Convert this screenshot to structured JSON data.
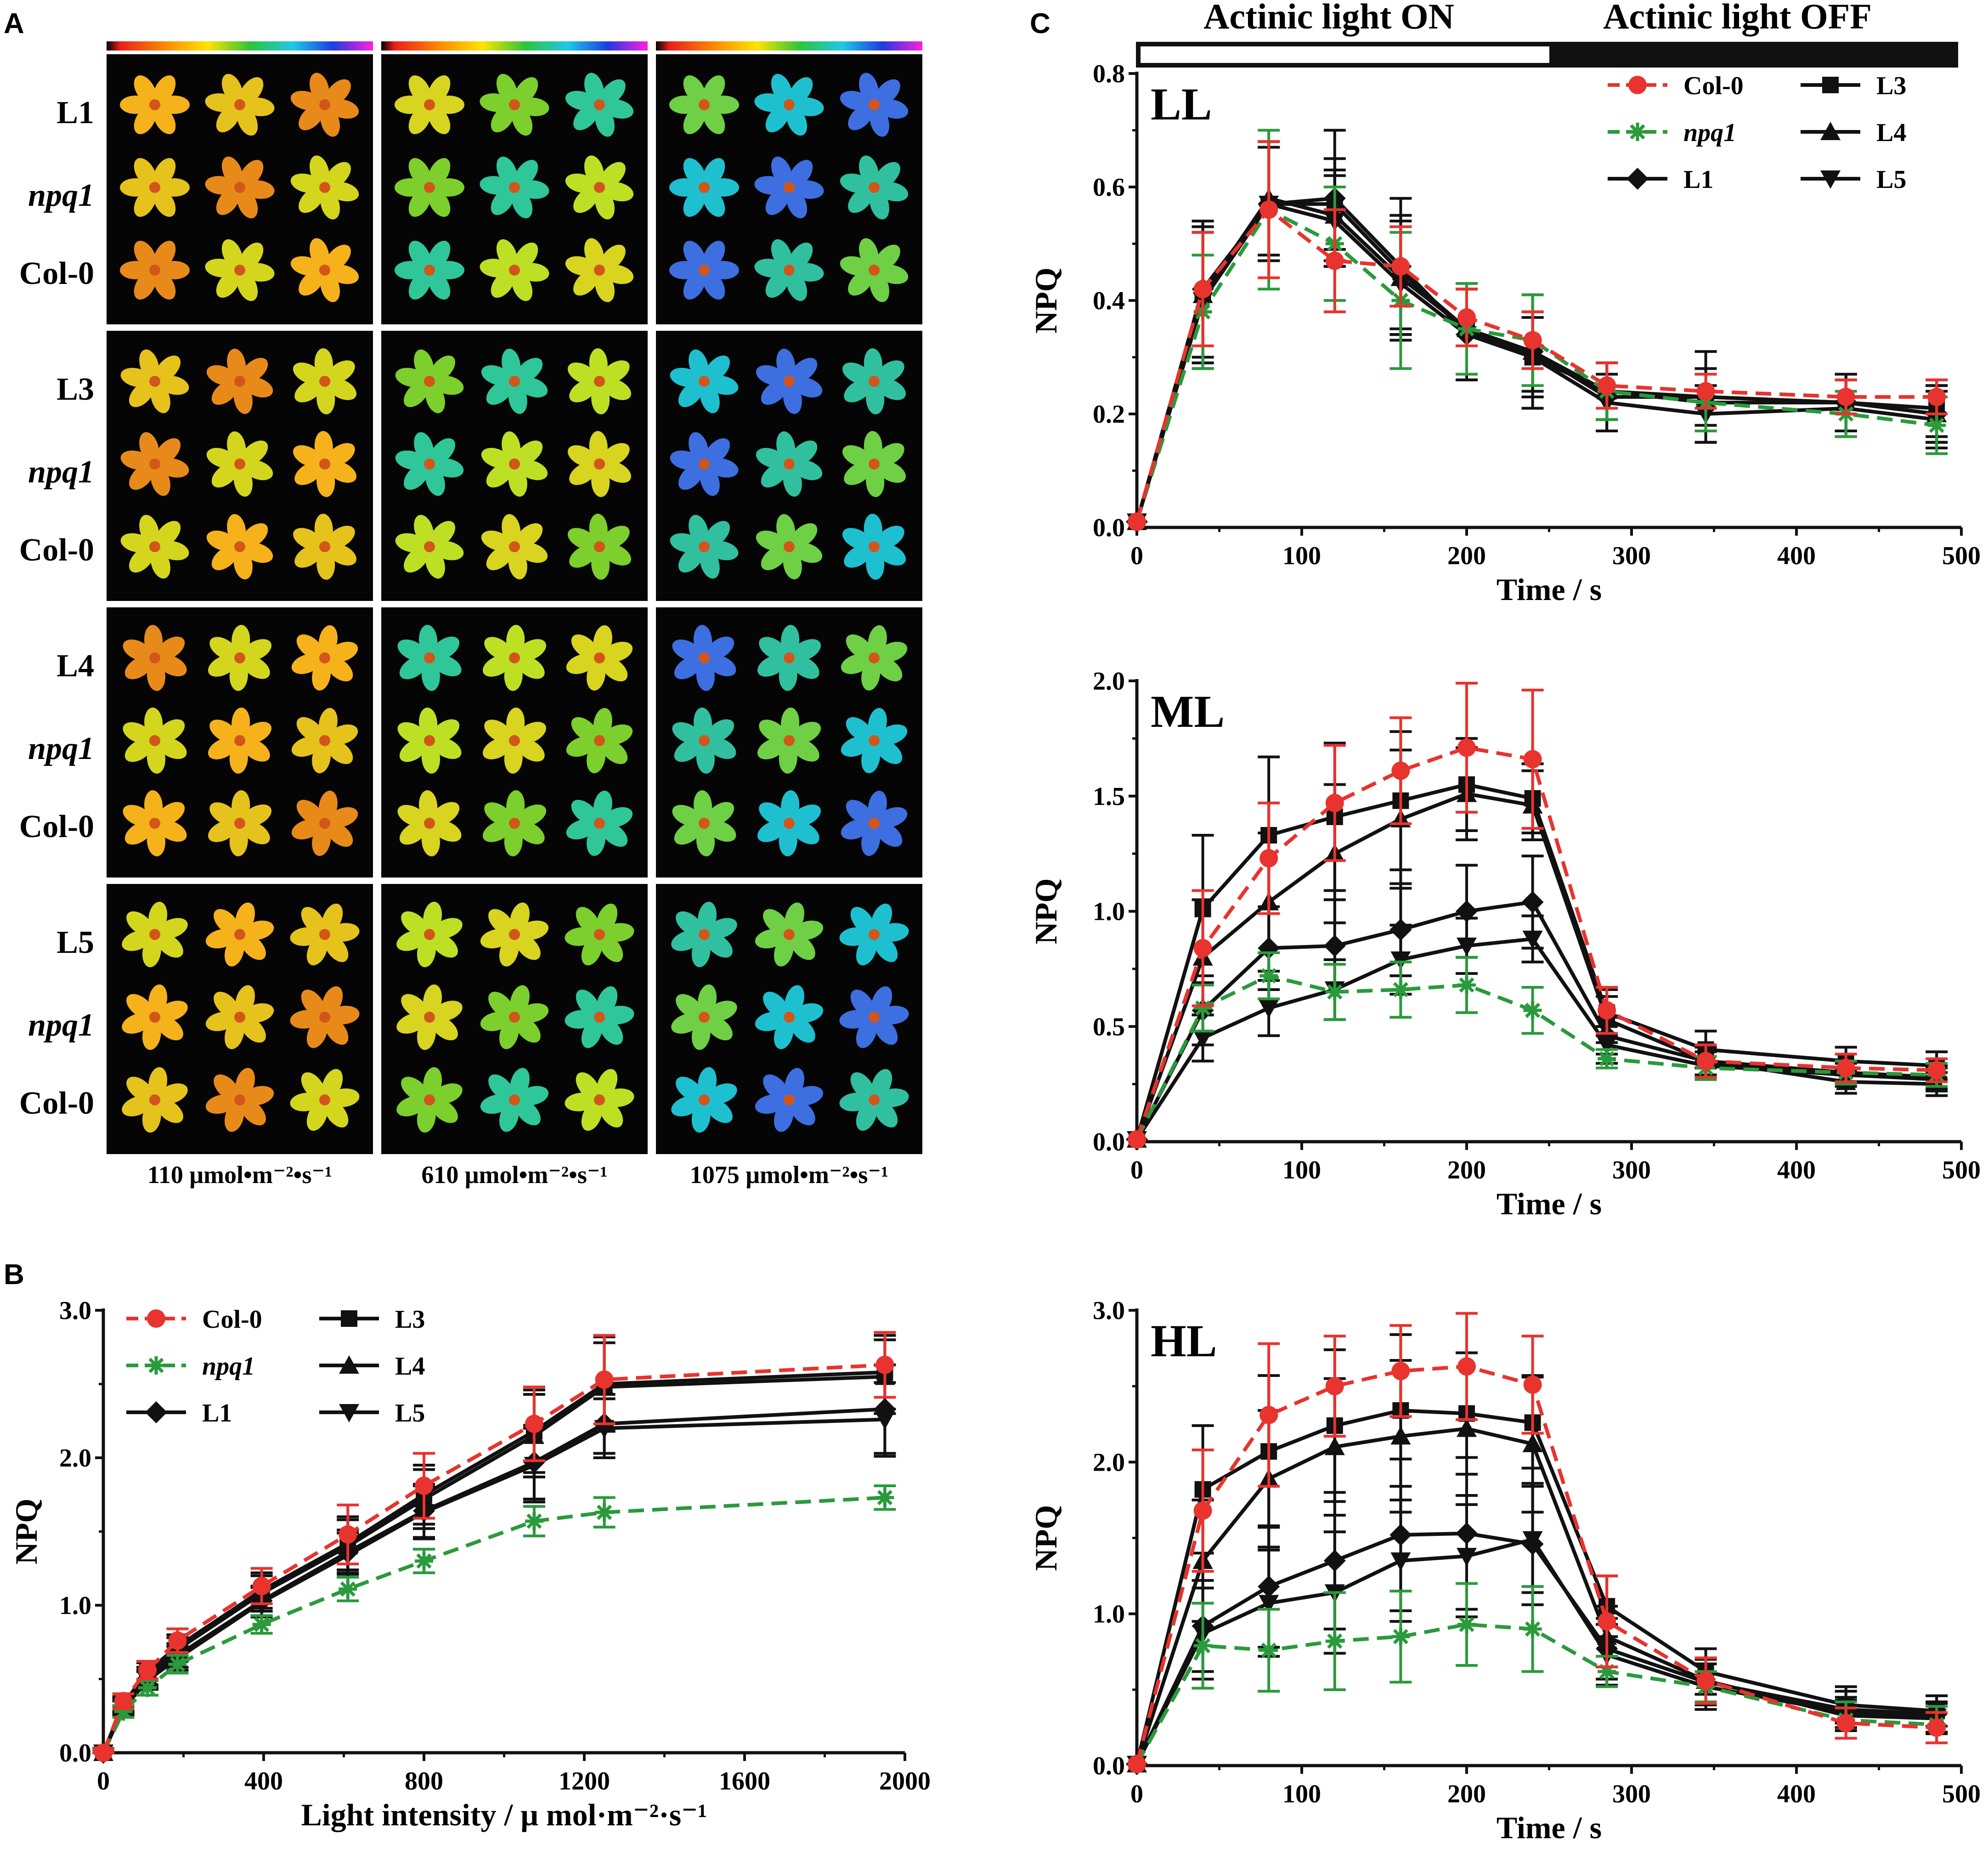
{
  "panels": {
    "a": "A",
    "b": "B",
    "c": "C"
  },
  "colors": {
    "col0": "#e8332e",
    "npq1": "#2a9a3c",
    "black": "#111111"
  },
  "panel_a": {
    "intensities": [
      "110 μmol•m⁻²•s⁻¹",
      "610 μmol•m⁻²•s⁻¹",
      "1075 μmol•m⁻²•s⁻¹"
    ],
    "groups": [
      {
        "line": "L1",
        "npq": "npq1",
        "col": "Col-0"
      },
      {
        "line": "L3",
        "npq": "npq1",
        "col": "Col-0"
      },
      {
        "line": "L4",
        "npq": "npq1",
        "col": "Col-0"
      },
      {
        "line": "L5",
        "npq": "npq1",
        "col": "Col-0"
      }
    ]
  },
  "legend": [
    {
      "label": "Col-0",
      "italic": false,
      "color": "#e8332e",
      "marker": "circle",
      "dash": true
    },
    {
      "label": "npq1",
      "italic": true,
      "color": "#2a9a3c",
      "marker": "star",
      "dash": true
    },
    {
      "label": "L1",
      "italic": false,
      "color": "#111111",
      "marker": "diamond",
      "dash": false
    },
    {
      "label": "L3",
      "italic": false,
      "color": "#111111",
      "marker": "square",
      "dash": false
    },
    {
      "label": "L4",
      "italic": false,
      "color": "#111111",
      "marker": "triangle-up",
      "dash": false
    },
    {
      "label": "L5",
      "italic": false,
      "color": "#111111",
      "marker": "triangle-down",
      "dash": false
    }
  ],
  "actinic": {
    "on": "Actinic light  ON",
    "off": "Actinic light  OFF",
    "on_end_s": 240
  },
  "chart_data": [
    {
      "id": "B",
      "type": "line",
      "title": "",
      "xlabel": "Light intensity / μ mol·m⁻²·s⁻¹",
      "ylabel": "NPQ",
      "xlim": [
        0,
        2000
      ],
      "ylim": [
        0,
        3.0
      ],
      "xticks": [
        0,
        400,
        800,
        1200,
        1600,
        2000
      ],
      "yticks": [
        0.0,
        1.0,
        2.0,
        3.0
      ],
      "ytick_labels": [
        "0.0",
        "1.0",
        "2.0",
        "3.0"
      ],
      "x": [
        0,
        50,
        110,
        185,
        395,
        610,
        800,
        1075,
        1250,
        1950
      ],
      "series": [
        {
          "name": "L3",
          "values": [
            0,
            0.33,
            0.55,
            0.72,
            1.1,
            1.42,
            1.75,
            2.18,
            2.5,
            2.58
          ],
          "errors": [
            0.03,
            0.05,
            0.06,
            0.08,
            0.12,
            0.18,
            0.2,
            0.28,
            0.32,
            0.25
          ]
        },
        {
          "name": "L4",
          "values": [
            0,
            0.32,
            0.52,
            0.7,
            1.08,
            1.4,
            1.72,
            2.15,
            2.48,
            2.55
          ],
          "errors": [
            0.03,
            0.05,
            0.06,
            0.08,
            0.12,
            0.18,
            0.2,
            0.28,
            0.3,
            0.25
          ]
        },
        {
          "name": "L1",
          "values": [
            0,
            0.31,
            0.5,
            0.66,
            1.03,
            1.36,
            1.64,
            1.97,
            2.23,
            2.33
          ],
          "errors": [
            0.03,
            0.05,
            0.06,
            0.08,
            0.1,
            0.15,
            0.18,
            0.25,
            0.2,
            0.3
          ]
        },
        {
          "name": "L5",
          "values": [
            0,
            0.3,
            0.49,
            0.64,
            1.02,
            1.34,
            1.63,
            1.95,
            2.2,
            2.26
          ],
          "errors": [
            0.03,
            0.05,
            0.06,
            0.08,
            0.1,
            0.15,
            0.18,
            0.25,
            0.2,
            0.25
          ]
        },
        {
          "name": "npq1",
          "values": [
            0,
            0.28,
            0.44,
            0.6,
            0.87,
            1.11,
            1.3,
            1.57,
            1.63,
            1.73
          ],
          "errors": [
            0.02,
            0.04,
            0.05,
            0.06,
            0.06,
            0.08,
            0.08,
            0.1,
            0.1,
            0.08
          ]
        },
        {
          "name": "Col-0",
          "values": [
            0,
            0.35,
            0.56,
            0.76,
            1.13,
            1.48,
            1.81,
            2.23,
            2.53,
            2.63
          ],
          "errors": [
            0.03,
            0.05,
            0.06,
            0.08,
            0.12,
            0.2,
            0.22,
            0.25,
            0.3,
            0.22
          ]
        }
      ]
    },
    {
      "id": "LL",
      "type": "line",
      "title": "LL",
      "xlabel": "Time / s",
      "ylabel": "NPQ",
      "xlim": [
        0,
        500
      ],
      "ylim": [
        0,
        0.8
      ],
      "xticks": [
        0,
        100,
        200,
        300,
        400,
        500
      ],
      "yticks": [
        0.0,
        0.2,
        0.4,
        0.6,
        0.8
      ],
      "ytick_labels": [
        "0.0",
        "0.2",
        "0.4",
        "0.6",
        "0.8"
      ],
      "x": [
        0,
        40,
        80,
        120,
        160,
        200,
        240,
        285,
        345,
        430,
        485
      ],
      "series": [
        {
          "name": "L3",
          "values": [
            0.01,
            0.41,
            0.57,
            0.57,
            0.45,
            0.35,
            0.3,
            0.24,
            0.22,
            0.22,
            0.21
          ],
          "errors": [
            0.01,
            0.12,
            0.1,
            0.08,
            0.1,
            0.08,
            0.07,
            0.05,
            0.05,
            0.05,
            0.05
          ]
        },
        {
          "name": "L4",
          "values": [
            0.01,
            0.41,
            0.58,
            0.55,
            0.44,
            0.35,
            0.31,
            0.24,
            0.23,
            0.22,
            0.2
          ],
          "errors": [
            0.01,
            0.12,
            0.1,
            0.08,
            0.1,
            0.08,
            0.07,
            0.05,
            0.05,
            0.05,
            0.05
          ]
        },
        {
          "name": "L1",
          "values": [
            0.01,
            0.42,
            0.57,
            0.58,
            0.46,
            0.34,
            0.31,
            0.23,
            0.23,
            0.22,
            0.2
          ],
          "errors": [
            0.01,
            0.12,
            0.1,
            0.12,
            0.12,
            0.08,
            0.1,
            0.06,
            0.08,
            0.05,
            0.05
          ]
        },
        {
          "name": "L5",
          "values": [
            0.01,
            0.4,
            0.57,
            0.54,
            0.43,
            0.34,
            0.3,
            0.22,
            0.2,
            0.21,
            0.19
          ],
          "errors": [
            0.01,
            0.12,
            0.1,
            0.08,
            0.1,
            0.08,
            0.07,
            0.05,
            0.05,
            0.05,
            0.05
          ]
        },
        {
          "name": "npq1",
          "values": [
            0.01,
            0.38,
            0.56,
            0.5,
            0.4,
            0.35,
            0.33,
            0.24,
            0.22,
            0.2,
            0.18
          ],
          "errors": [
            0.01,
            0.1,
            0.14,
            0.1,
            0.12,
            0.08,
            0.08,
            0.05,
            0.05,
            0.04,
            0.05
          ]
        },
        {
          "name": "Col-0",
          "values": [
            0.01,
            0.42,
            0.56,
            0.47,
            0.46,
            0.37,
            0.33,
            0.25,
            0.24,
            0.23,
            0.23
          ],
          "errors": [
            0.01,
            0.1,
            0.12,
            0.09,
            0.07,
            0.05,
            0.05,
            0.04,
            0.03,
            0.03,
            0.03
          ]
        }
      ]
    },
    {
      "id": "ML",
      "type": "line",
      "title": "ML",
      "xlabel": "Time / s",
      "ylabel": "NPQ",
      "xlim": [
        0,
        500
      ],
      "ylim": [
        0,
        2.0
      ],
      "xticks": [
        0,
        100,
        200,
        300,
        400,
        500
      ],
      "yticks": [
        0.0,
        0.5,
        1.0,
        1.5,
        2.0
      ],
      "ytick_labels": [
        "0.0",
        "0.5",
        "1.0",
        "1.5",
        "2.0"
      ],
      "x": [
        0,
        40,
        80,
        120,
        160,
        200,
        240,
        285,
        345,
        430,
        485
      ],
      "series": [
        {
          "name": "L3",
          "values": [
            0.01,
            1.01,
            1.33,
            1.41,
            1.48,
            1.55,
            1.49,
            0.56,
            0.4,
            0.35,
            0.33
          ],
          "errors": [
            0.01,
            0.32,
            0.34,
            0.32,
            0.3,
            0.2,
            0.15,
            0.1,
            0.08,
            0.06,
            0.06
          ]
        },
        {
          "name": "L4",
          "values": [
            0.01,
            0.8,
            1.04,
            1.25,
            1.4,
            1.51,
            1.46,
            0.53,
            0.35,
            0.26,
            0.25
          ],
          "errors": [
            0.01,
            0.25,
            0.3,
            0.3,
            0.3,
            0.2,
            0.15,
            0.1,
            0.07,
            0.05,
            0.05
          ]
        },
        {
          "name": "L1",
          "values": [
            0.01,
            0.57,
            0.84,
            0.85,
            0.92,
            1.0,
            1.04,
            0.46,
            0.35,
            0.3,
            0.28
          ],
          "errors": [
            0.01,
            0.15,
            0.18,
            0.2,
            0.2,
            0.2,
            0.2,
            0.08,
            0.06,
            0.05,
            0.05
          ]
        },
        {
          "name": "L5",
          "values": [
            0.01,
            0.45,
            0.58,
            0.66,
            0.79,
            0.85,
            0.88,
            0.42,
            0.33,
            0.29,
            0.27
          ],
          "errors": [
            0.01,
            0.1,
            0.12,
            0.13,
            0.15,
            0.12,
            0.1,
            0.08,
            0.06,
            0.05,
            0.05
          ]
        },
        {
          "name": "npq1",
          "values": [
            0.01,
            0.58,
            0.72,
            0.65,
            0.66,
            0.68,
            0.57,
            0.36,
            0.32,
            0.3,
            0.29
          ],
          "errors": [
            0.01,
            0.1,
            0.1,
            0.12,
            0.12,
            0.12,
            0.1,
            0.04,
            0.05,
            0.05,
            0.05
          ]
        },
        {
          "name": "Col-0",
          "values": [
            0.01,
            0.84,
            1.23,
            1.47,
            1.61,
            1.71,
            1.66,
            0.57,
            0.35,
            0.32,
            0.31
          ],
          "errors": [
            0.01,
            0.25,
            0.24,
            0.25,
            0.23,
            0.28,
            0.3,
            0.1,
            0.07,
            0.06,
            0.05
          ]
        }
      ]
    },
    {
      "id": "HL",
      "type": "line",
      "title": "HL",
      "xlabel": "Time / s",
      "ylabel": "NPQ",
      "xlim": [
        0,
        500
      ],
      "ylim": [
        0,
        3.0
      ],
      "xticks": [
        0,
        100,
        200,
        300,
        400,
        500
      ],
      "yticks": [
        0.0,
        1.0,
        2.0,
        3.0
      ],
      "ytick_labels": [
        "0.0",
        "1.0",
        "2.0",
        "3.0"
      ],
      "x": [
        0,
        40,
        80,
        120,
        160,
        200,
        240,
        285,
        345,
        430,
        485
      ],
      "series": [
        {
          "name": "L3",
          "values": [
            0.01,
            1.82,
            2.07,
            2.24,
            2.34,
            2.32,
            2.26,
            1.05,
            0.62,
            0.4,
            0.36
          ],
          "errors": [
            0.01,
            0.42,
            0.5,
            0.5,
            0.5,
            0.4,
            0.3,
            0.2,
            0.15,
            0.12,
            0.1
          ]
        },
        {
          "name": "L4",
          "values": [
            0.01,
            1.35,
            1.89,
            2.1,
            2.17,
            2.22,
            2.12,
            0.85,
            0.56,
            0.33,
            0.31
          ],
          "errors": [
            0.01,
            0.4,
            0.45,
            0.45,
            0.5,
            0.5,
            0.45,
            0.2,
            0.15,
            0.1,
            0.1
          ]
        },
        {
          "name": "L1",
          "values": [
            0.01,
            0.92,
            1.18,
            1.35,
            1.52,
            1.53,
            1.46,
            0.77,
            0.55,
            0.37,
            0.34
          ],
          "errors": [
            0.01,
            0.3,
            0.4,
            0.45,
            0.5,
            0.5,
            0.4,
            0.2,
            0.15,
            0.12,
            0.12
          ]
        },
        {
          "name": "L5",
          "values": [
            0.01,
            0.87,
            1.07,
            1.14,
            1.35,
            1.38,
            1.49,
            0.73,
            0.52,
            0.35,
            0.32
          ],
          "errors": [
            0.01,
            0.3,
            0.35,
            0.4,
            0.4,
            0.4,
            0.35,
            0.2,
            0.15,
            0.1,
            0.1
          ]
        },
        {
          "name": "npq1",
          "values": [
            0.01,
            0.79,
            0.76,
            0.82,
            0.85,
            0.93,
            0.9,
            0.62,
            0.52,
            0.3,
            0.27
          ],
          "errors": [
            0.01,
            0.28,
            0.27,
            0.32,
            0.3,
            0.27,
            0.28,
            0.1,
            0.1,
            0.12,
            0.12
          ]
        },
        {
          "name": "Col-0",
          "values": [
            0.01,
            1.68,
            2.31,
            2.5,
            2.6,
            2.63,
            2.51,
            0.95,
            0.56,
            0.28,
            0.25
          ],
          "errors": [
            0.01,
            0.4,
            0.47,
            0.33,
            0.3,
            0.35,
            0.32,
            0.3,
            0.15,
            0.1,
            0.1
          ]
        }
      ]
    }
  ]
}
